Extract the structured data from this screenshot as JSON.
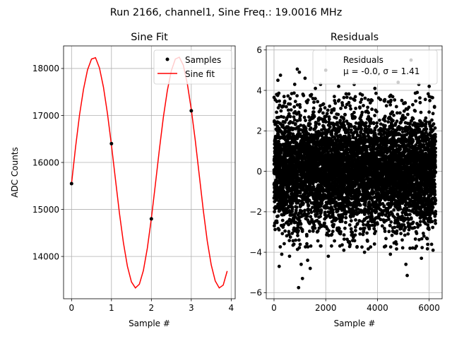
{
  "figure_title": "Run 2166, channel1, Sine Freq.: 19.0016 MHz",
  "chart_data": [
    {
      "type": "line",
      "title": "Sine Fit",
      "xlabel": "Sample #",
      "ylabel": "ADC Counts",
      "xlim": [
        -0.2,
        4.1
      ],
      "ylim": [
        13100,
        18480
      ],
      "xticks": [
        0,
        1,
        2,
        3,
        4
      ],
      "yticks": [
        14000,
        15000,
        16000,
        17000,
        18000
      ],
      "grid": true,
      "legend_position": "top-right",
      "legend": [
        "Samples",
        "Sine fit"
      ],
      "series": [
        {
          "name": "Samples",
          "style": "markers",
          "color": "#000000",
          "x": [
            0,
            1,
            2,
            3
          ],
          "y": [
            15550,
            16400,
            14800,
            17100
          ]
        },
        {
          "name": "Sine fit",
          "style": "line",
          "color": "#ff0000",
          "x": [
            0,
            0.1,
            0.2,
            0.3,
            0.4,
            0.5,
            0.6,
            0.7,
            0.8,
            0.9,
            1.0,
            1.1,
            1.2,
            1.3,
            1.4,
            1.5,
            1.6,
            1.7,
            1.8,
            1.9,
            2.0,
            2.1,
            2.2,
            2.3,
            2.4,
            2.5,
            2.6,
            2.7,
            2.8,
            2.9,
            3.0,
            3.1,
            3.2,
            3.3,
            3.4,
            3.5,
            3.6,
            3.7,
            3.8,
            3.9
          ],
          "y": [
            15550,
            16320,
            17010,
            17560,
            17970,
            18200,
            18230,
            18010,
            17600,
            17040,
            16370,
            15640,
            14920,
            14290,
            13790,
            13460,
            13330,
            13410,
            13700,
            14180,
            14810,
            15530,
            16270,
            16960,
            17530,
            17950,
            18200,
            18240,
            18070,
            17680,
            17130,
            16470,
            15730,
            14990,
            14330,
            13820,
            13480,
            13330,
            13390,
            13690
          ]
        }
      ]
    },
    {
      "type": "scatter",
      "title": "Residuals",
      "xlabel": "Sample #",
      "ylabel": "",
      "xlim": [
        -300,
        6500
      ],
      "ylim": [
        -6.3,
        6.2
      ],
      "xticks": [
        0,
        2000,
        4000,
        6000
      ],
      "yticks": [
        -6,
        -4,
        -2,
        0,
        2,
        4,
        6
      ],
      "grid": true,
      "legend_position": "top-right",
      "legend": [
        "Residuals"
      ],
      "legend_stats": "μ = -0.0, σ = 1.41",
      "n_samples": 6250,
      "mean": 0.0,
      "std": 1.41,
      "series": [
        {
          "name": "Residuals",
          "color": "#000000",
          "outliers": [
            {
              "x": 100,
              "y": 3.8
            },
            {
              "x": 150,
              "y": 4.5
            },
            {
              "x": 200,
              "y": -4.7
            },
            {
              "x": 250,
              "y": 4.75
            },
            {
              "x": 300,
              "y": -4.1
            },
            {
              "x": 600,
              "y": -4.2
            },
            {
              "x": 800,
              "y": 4.3
            },
            {
              "x": 900,
              "y": 5.05
            },
            {
              "x": 950,
              "y": -5.75
            },
            {
              "x": 980,
              "y": 4.9
            },
            {
              "x": 1050,
              "y": -4.6
            },
            {
              "x": 1100,
              "y": -5.3
            },
            {
              "x": 1200,
              "y": 4.6
            },
            {
              "x": 1300,
              "y": -4.4
            },
            {
              "x": 1400,
              "y": -4.8
            },
            {
              "x": 1600,
              "y": 4.1
            },
            {
              "x": 1800,
              "y": 4.3
            },
            {
              "x": 2000,
              "y": 5.0
            },
            {
              "x": 2100,
              "y": -4.2
            },
            {
              "x": 2500,
              "y": 4.2
            },
            {
              "x": 2700,
              "y": -3.9
            },
            {
              "x": 3100,
              "y": 4.3
            },
            {
              "x": 3500,
              "y": -4.0
            },
            {
              "x": 3900,
              "y": 4.1
            },
            {
              "x": 4500,
              "y": -4.1
            },
            {
              "x": 4800,
              "y": 4.4
            },
            {
              "x": 5100,
              "y": -4.6
            },
            {
              "x": 5150,
              "y": -5.15
            },
            {
              "x": 5300,
              "y": 5.5
            },
            {
              "x": 5600,
              "y": 4.3
            },
            {
              "x": 5700,
              "y": -4.3
            },
            {
              "x": 6000,
              "y": 4.2
            },
            {
              "x": 6150,
              "y": -3.9
            }
          ]
        }
      ]
    }
  ]
}
